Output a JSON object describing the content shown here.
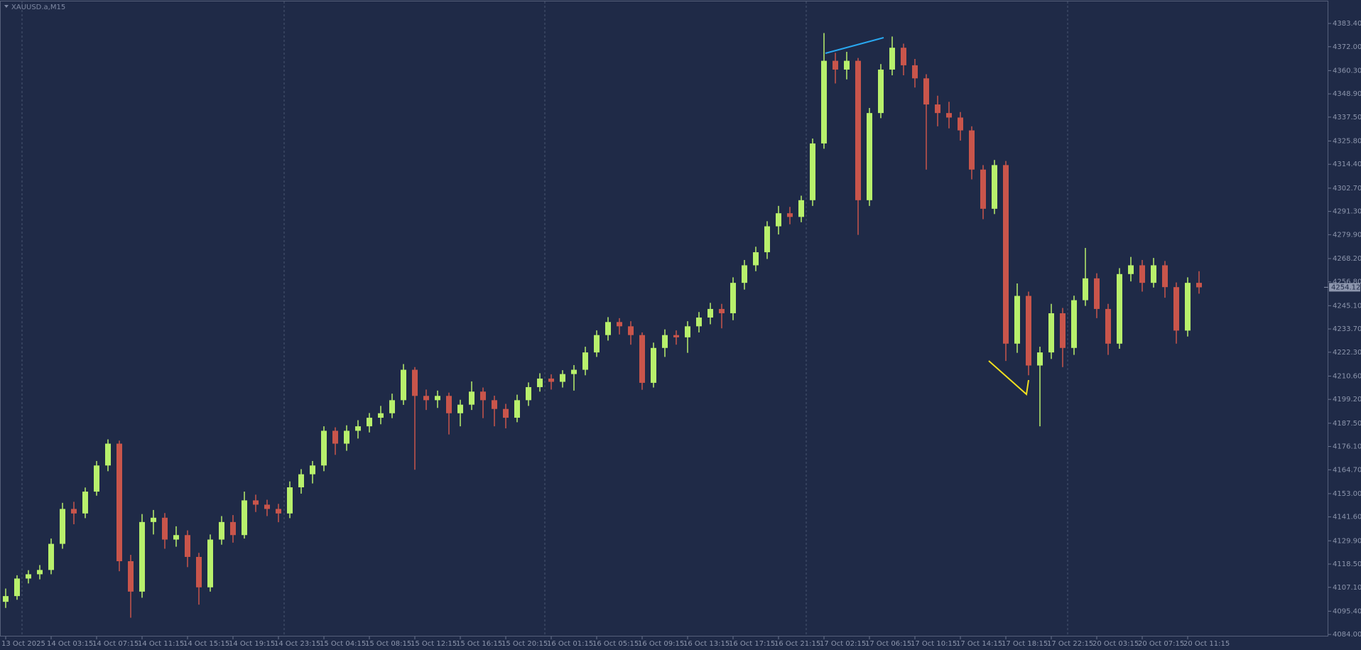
{
  "chart_data": {
    "type": "candlestick",
    "title": "XAUUSD.a,M15",
    "categories": [
      "13 Oct 2025",
      null,
      null,
      null,
      "14 Oct 03:15",
      null,
      null,
      null,
      "14 Oct 07:15",
      null,
      null,
      null,
      "14 Oct 11:15",
      null,
      null,
      null,
      "14 Oct 15:15",
      null,
      null,
      null,
      "14 Oct 19:15",
      null,
      null,
      null,
      "14 Oct 23:15",
      null,
      null,
      null,
      "15 Oct 04:15",
      null,
      null,
      null,
      "15 Oct 08:15",
      null,
      null,
      null,
      "15 Oct 12:15",
      null,
      null,
      null,
      "15 Oct 16:15",
      null,
      null,
      null,
      "15 Oct 20:15",
      null,
      null,
      null,
      "16 Oct 01:15",
      null,
      null,
      null,
      "16 Oct 05:15",
      null,
      null,
      null,
      "16 Oct 09:15",
      null,
      null,
      null,
      "16 Oct 13:15",
      null,
      null,
      null,
      "16 Oct 17:15",
      null,
      null,
      null,
      "16 Oct 21:15",
      null,
      null,
      null,
      "17 Oct 02:15",
      null,
      null,
      null,
      "17 Oct 06:15",
      null,
      null,
      null,
      "17 Oct 10:15",
      null,
      null,
      null,
      "17 Oct 14:15",
      null,
      null,
      null,
      "17 Oct 18:15",
      null,
      null,
      null,
      "17 Oct 22:15",
      null,
      null,
      null,
      "20 Oct 03:15",
      null,
      null,
      null,
      "20 Oct 07:15",
      null,
      null,
      null,
      "20 Oct 11:15",
      null
    ],
    "open": [
      4100.0,
      4102.8,
      4111.4,
      4113.5,
      4115.6,
      4128.4,
      4145.5,
      4143.3,
      4154.0,
      4166.8,
      4177.5,
      4119.9,
      4105.0,
      4139.1,
      4141.2,
      4130.5,
      4132.7,
      4122.0,
      4107.1,
      4130.5,
      4139.1,
      4132.7,
      4149.7,
      4147.6,
      4145.5,
      4143.3,
      4156.1,
      4162.5,
      4166.8,
      4183.8,
      4177.5,
      4183.8,
      4186.0,
      4190.2,
      4192.4,
      4198.8,
      4213.7,
      4200.9,
      4198.8,
      4200.9,
      4192.4,
      4196.6,
      4203.0,
      4198.8,
      4194.5,
      4190.2,
      4198.8,
      4205.2,
      4209.4,
      4207.8,
      4211.6,
      4213.7,
      4222.2,
      4230.7,
      4237.1,
      4235.0,
      4230.7,
      4207.3,
      4224.4,
      4230.7,
      4229.6,
      4235.0,
      4239.3,
      4243.5,
      4241.4,
      4256.3,
      4264.9,
      4271.3,
      4284.0,
      4290.4,
      4288.6,
      4296.8,
      4324.6,
      4365.1,
      4360.8,
      4365.1,
      4296.8,
      4339.5,
      4360.8,
      4371.5,
      4362.9,
      4356.5,
      4343.7,
      4339.5,
      4337.3,
      4331.0,
      4311.8,
      4292.6,
      4314.0,
      4226.5,
      4249.9,
      4215.8,
      4222.2,
      4241.4,
      4224.4,
      4247.8,
      4258.5,
      4243.5,
      4226.5,
      4260.6,
      4264.9,
      4256.3,
      4264.9,
      4254.2,
      4232.9,
      4256.3
    ],
    "high": [
      4106.5,
      4113.0,
      4115.5,
      4118.0,
      4131.0,
      4148.5,
      4149.0,
      4156.0,
      4169.0,
      4179.6,
      4179.0,
      4123.0,
      4143.0,
      4145.0,
      4143.5,
      4137.0,
      4135.0,
      4124.0,
      4133.0,
      4142.0,
      4142.5,
      4154.0,
      4152.5,
      4150.0,
      4148.0,
      4159.0,
      4165.0,
      4169.0,
      4186.0,
      4185.5,
      4186.5,
      4189.0,
      4192.5,
      4196.0,
      4202.0,
      4216.5,
      4215.0,
      4204.0,
      4203.5,
      4202.5,
      4199.0,
      4208.0,
      4205.0,
      4201.0,
      4197.0,
      4201.5,
      4207.5,
      4212.0,
      4211.5,
      4213.5,
      4216.0,
      4225.0,
      4233.0,
      4239.5,
      4239.0,
      4237.5,
      4232.0,
      4227.0,
      4233.5,
      4233.0,
      4237.5,
      4242.0,
      4246.5,
      4246.0,
      4259.0,
      4267.5,
      4274.0,
      4286.5,
      4294.0,
      4293.5,
      4299.0,
      4327.0,
      4378.7,
      4369.0,
      4369.5,
      4366.5,
      4342.0,
      4363.5,
      4377.0,
      4373.5,
      4366.0,
      4358.5,
      4348.0,
      4345.0,
      4340.0,
      4333.0,
      4314.0,
      4316.5,
      4316.0,
      4256.0,
      4252.0,
      4225.0,
      4246.0,
      4244.0,
      4250.0,
      4273.4,
      4261.0,
      4246.0,
      4263.5,
      4269.0,
      4267.5,
      4268.5,
      4267.0,
      4256.5,
      4259.0,
      4262.0
    ],
    "low": [
      4097.0,
      4101.0,
      4109.0,
      4111.0,
      4113.5,
      4126.0,
      4138.0,
      4141.0,
      4152.0,
      4164.0,
      4115.0,
      4092.2,
      4102.0,
      4133.0,
      4126.0,
      4127.0,
      4117.0,
      4098.6,
      4105.0,
      4128.0,
      4129.0,
      4131.0,
      4144.0,
      4142.0,
      4139.0,
      4141.0,
      4153.0,
      4158.0,
      4164.0,
      4172.0,
      4174.0,
      4180.0,
      4183.0,
      4187.0,
      4190.0,
      4196.5,
      4164.7,
      4194.0,
      4195.0,
      4182.0,
      4186.0,
      4194.0,
      4190.0,
      4186.0,
      4185.0,
      4188.0,
      4196.0,
      4203.0,
      4204.0,
      4205.0,
      4203.5,
      4211.0,
      4220.0,
      4228.0,
      4231.0,
      4226.0,
      4203.9,
      4205.0,
      4220.0,
      4226.0,
      4222.0,
      4232.0,
      4236.0,
      4234.0,
      4238.0,
      4253.0,
      4262.0,
      4268.0,
      4280.0,
      4285.0,
      4286.0,
      4294.0,
      4322.0,
      4354.0,
      4356.0,
      4279.8,
      4294.0,
      4337.0,
      4358.0,
      4358.0,
      4352.0,
      4311.8,
      4333.0,
      4332.0,
      4326.0,
      4307.0,
      4287.5,
      4290.0,
      4218.0,
      4222.0,
      4211.0,
      4186.0,
      4219.0,
      4215.0,
      4221.0,
      4245.0,
      4239.0,
      4221.0,
      4224.0,
      4257.0,
      4252.0,
      4254.0,
      4249.0,
      4226.5,
      4230.0,
      4251.0
    ],
    "close": [
      4102.8,
      4111.4,
      4113.5,
      4115.6,
      4128.4,
      4145.5,
      4143.3,
      4154.0,
      4166.8,
      4177.5,
      4119.9,
      4105.0,
      4139.1,
      4141.2,
      4130.5,
      4132.7,
      4122.0,
      4107.1,
      4130.5,
      4139.1,
      4132.7,
      4149.7,
      4147.6,
      4145.5,
      4143.3,
      4156.1,
      4162.5,
      4166.8,
      4183.8,
      4177.5,
      4183.8,
      4186.0,
      4190.2,
      4192.4,
      4198.8,
      4213.7,
      4200.9,
      4198.8,
      4200.9,
      4192.4,
      4196.6,
      4203.0,
      4198.8,
      4194.5,
      4190.2,
      4198.8,
      4205.2,
      4209.4,
      4207.8,
      4211.6,
      4213.7,
      4222.2,
      4230.7,
      4237.1,
      4235.0,
      4230.7,
      4207.3,
      4224.4,
      4230.7,
      4229.6,
      4235.0,
      4239.3,
      4243.5,
      4241.4,
      4256.3,
      4264.9,
      4271.3,
      4284.0,
      4290.4,
      4288.6,
      4296.8,
      4324.6,
      4365.1,
      4360.8,
      4365.1,
      4296.8,
      4339.5,
      4360.8,
      4371.5,
      4362.9,
      4356.5,
      4343.7,
      4339.5,
      4337.3,
      4331.0,
      4311.8,
      4292.6,
      4314.0,
      4226.5,
      4249.9,
      4215.8,
      4222.2,
      4241.4,
      4224.4,
      4247.8,
      4258.5,
      4243.5,
      4226.5,
      4260.6,
      4264.9,
      4256.3,
      4264.9,
      4254.2,
      4232.9,
      4256.3,
      4254.1
    ],
    "up_color": "#b8f06c",
    "down_color": "#c9554b",
    "ylim": [
      4083.0,
      4394.2
    ],
    "yticks": [
      {
        "value": 4383.4,
        "label": "4383.40"
      },
      {
        "value": 4372.0,
        "label": "4372.00"
      },
      {
        "value": 4360.3,
        "label": "4360.30"
      },
      {
        "value": 4348.9,
        "label": "4348.90"
      },
      {
        "value": 4337.5,
        "label": "4337.50"
      },
      {
        "value": 4325.8,
        "label": "4325.80"
      },
      {
        "value": 4314.4,
        "label": "4314.40"
      },
      {
        "value": 4302.7,
        "label": "4302.70"
      },
      {
        "value": 4291.3,
        "label": "4291.30"
      },
      {
        "value": 4279.9,
        "label": "4279.90"
      },
      {
        "value": 4268.2,
        "label": "4268.20"
      },
      {
        "value": 4256.8,
        "label": "4256.80"
      },
      {
        "value": 4245.1,
        "label": "4245.10"
      },
      {
        "value": 4233.7,
        "label": "4233.70"
      },
      {
        "value": 4222.3,
        "label": "4222.30"
      },
      {
        "value": 4210.6,
        "label": "4210.60"
      },
      {
        "value": 4199.2,
        "label": "4199.20"
      },
      {
        "value": 4187.5,
        "label": "4187.50"
      },
      {
        "value": 4176.1,
        "label": "4176.10"
      },
      {
        "value": 4164.7,
        "label": "4164.70"
      },
      {
        "value": 4153.0,
        "label": "4153.00"
      },
      {
        "value": 4141.6,
        "label": "4141.60"
      },
      {
        "value": 4129.9,
        "label": "4129.90"
      },
      {
        "value": 4118.5,
        "label": "4118.50"
      },
      {
        "value": 4107.1,
        "label": "4107.10"
      },
      {
        "value": 4095.4,
        "label": "4095.40"
      },
      {
        "value": 4084.0,
        "label": "4084.00"
      }
    ],
    "last_price": 4254.12
  }
}
